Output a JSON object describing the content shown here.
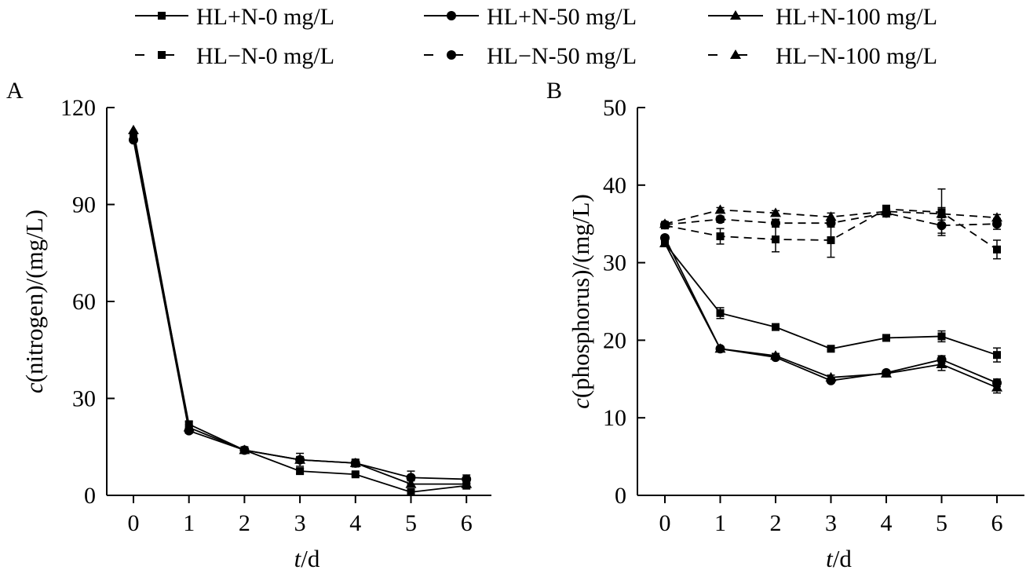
{
  "legend": [
    {
      "label": "HL+N-0 mg/L",
      "marker": "square",
      "dash": false
    },
    {
      "label": "HL+N-50 mg/L",
      "marker": "circle",
      "dash": false
    },
    {
      "label": "HL+N-100 mg/L",
      "marker": "triangle",
      "dash": false
    },
    {
      "label": "HL−N-0 mg/L",
      "marker": "square",
      "dash": true
    },
    {
      "label": "HL−N-50 mg/L",
      "marker": "circle",
      "dash": true
    },
    {
      "label": "HL−N-100 mg/L",
      "marker": "triangle",
      "dash": true
    }
  ],
  "chart_data": [
    {
      "panel": "A",
      "type": "line",
      "title": "",
      "xlabel_italic": "t",
      "xlabel_rest": "/d",
      "ylabel_italic": "c",
      "ylabel_rest": "(nitrogen)/(mg/L)",
      "ylim": [
        0,
        120
      ],
      "yticks": [
        0,
        30,
        60,
        90,
        120
      ],
      "x": [
        0,
        1,
        2,
        3,
        4,
        5,
        6
      ],
      "series": [
        {
          "name": "HL+N-0 mg/L",
          "marker": "square",
          "dash": false,
          "values": [
            111,
            22,
            14,
            7.5,
            6.5,
            1,
            3
          ],
          "errors": [
            0,
            0.8,
            0.5,
            0.8,
            0.5,
            0.6,
            0.6
          ]
        },
        {
          "name": "HL+N-50 mg/L",
          "marker": "circle",
          "dash": false,
          "values": [
            110,
            20,
            14,
            11,
            10,
            5.5,
            5
          ],
          "errors": [
            0,
            0.8,
            0.5,
            2,
            1.2,
            2,
            1.3
          ]
        },
        {
          "name": "HL+N-100 mg/L",
          "marker": "triangle",
          "dash": false,
          "values": [
            113,
            21,
            14,
            11,
            10,
            3.5,
            3.5
          ],
          "errors": [
            0,
            0.8,
            0.5,
            1,
            1,
            1,
            1
          ]
        }
      ]
    },
    {
      "panel": "B",
      "type": "line",
      "title": "",
      "xlabel_italic": "t",
      "xlabel_rest": "/d",
      "ylabel_italic": "c",
      "ylabel_rest": "(phosphorus)/(mg/L)",
      "ylim": [
        0,
        50
      ],
      "yticks": [
        0,
        10,
        20,
        30,
        40,
        50
      ],
      "x": [
        0,
        1,
        2,
        3,
        4,
        5,
        6
      ],
      "series": [
        {
          "name": "HL+N-0 mg/L",
          "marker": "square",
          "dash": false,
          "values": [
            32.5,
            23.5,
            21.7,
            18.9,
            20.3,
            20.5,
            18.1
          ],
          "errors": [
            0.3,
            0.7,
            0.4,
            0.3,
            0.3,
            0.7,
            0.9
          ]
        },
        {
          "name": "HL+N-50 mg/L",
          "marker": "circle",
          "dash": false,
          "values": [
            33.2,
            18.9,
            17.8,
            14.8,
            15.8,
            17.5,
            14.5
          ],
          "errors": [
            0.3,
            0.3,
            0.3,
            0.3,
            0.3,
            0.5,
            0.5
          ]
        },
        {
          "name": "HL+N-100 mg/L",
          "marker": "triangle",
          "dash": false,
          "values": [
            32.5,
            18.9,
            18.0,
            15.2,
            15.7,
            16.9,
            13.9
          ],
          "errors": [
            0.3,
            0.3,
            0.3,
            0.3,
            0.3,
            0.8,
            0.7
          ]
        },
        {
          "name": "HL−N-0 mg/L",
          "marker": "square",
          "dash": true,
          "values": [
            34.8,
            33.4,
            33.0,
            32.9,
            36.9,
            36.5,
            31.7
          ],
          "errors": [
            0.3,
            1.0,
            1.6,
            2.2,
            0.5,
            3.0,
            1.2
          ]
        },
        {
          "name": "HL−N-50 mg/L",
          "marker": "circle",
          "dash": true,
          "values": [
            34.9,
            35.6,
            35.1,
            35.1,
            36.4,
            34.8,
            35.0
          ],
          "errors": [
            0.3,
            0.4,
            0.5,
            0.5,
            0.5,
            1.0,
            0.7
          ]
        },
        {
          "name": "HL−N-100 mg/L",
          "marker": "triangle",
          "dash": true,
          "values": [
            35.0,
            36.8,
            36.4,
            35.9,
            36.6,
            36.3,
            35.8
          ],
          "errors": [
            0.3,
            0.3,
            0.3,
            0.5,
            0.4,
            0.8,
            0.4
          ]
        }
      ]
    }
  ]
}
